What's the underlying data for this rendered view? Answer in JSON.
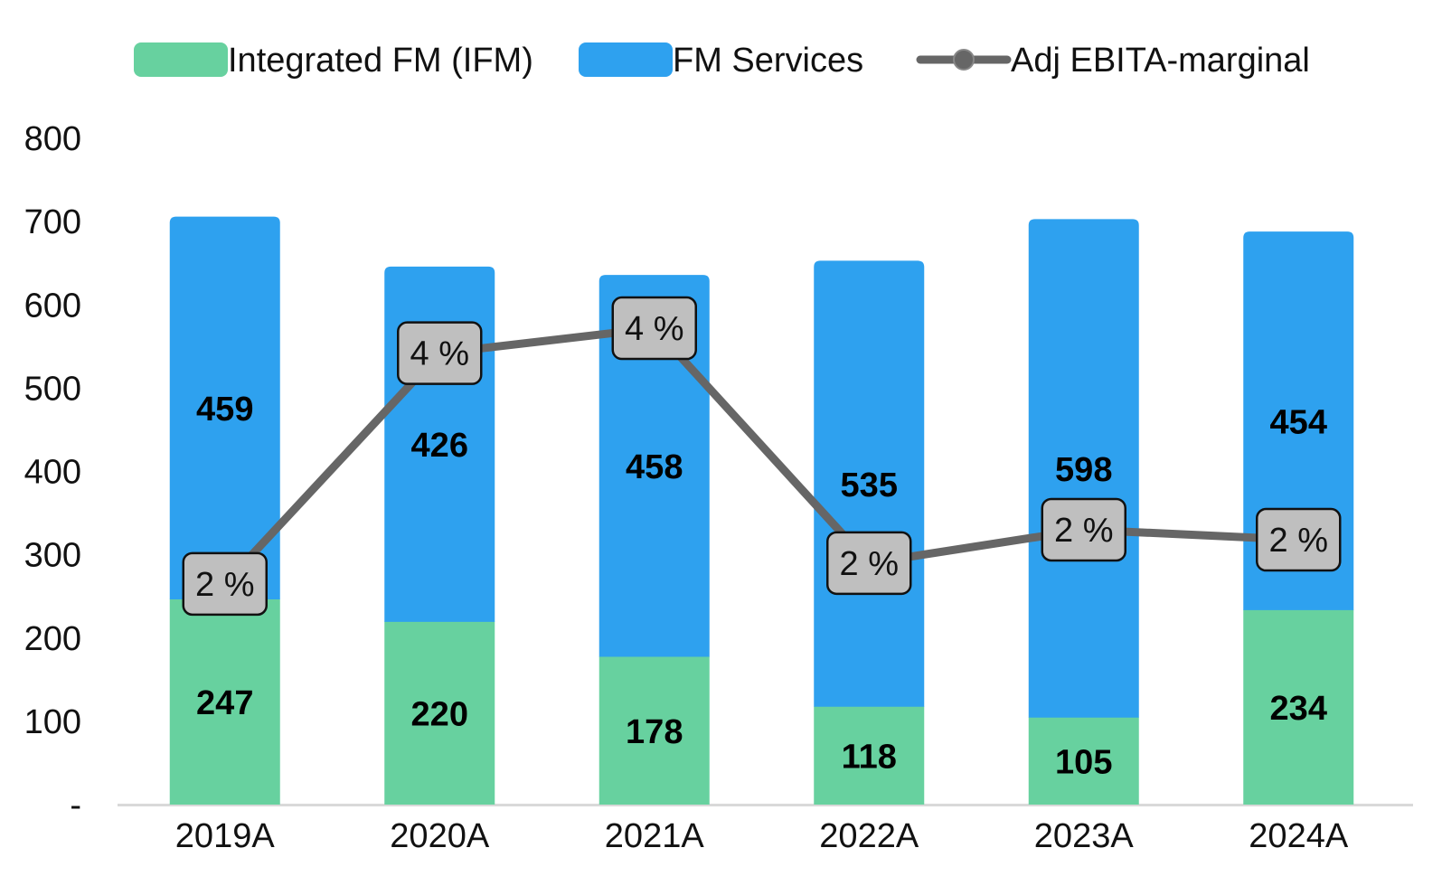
{
  "chart_data": {
    "type": "bar",
    "stacked": true,
    "title": "",
    "xlabel": "",
    "ylabel": "",
    "categories": [
      "2019A",
      "2020A",
      "2021A",
      "2022A",
      "2023A",
      "2024A"
    ],
    "ylim": [
      0,
      800
    ],
    "yticks": [
      0,
      100,
      200,
      300,
      400,
      500,
      600,
      700,
      800
    ],
    "ytick_labels": [
      "-",
      "100",
      "200",
      "300",
      "400",
      "500",
      "600",
      "700",
      "800"
    ],
    "series": [
      {
        "name": "Integrated FM (IFM)",
        "kind": "bar",
        "color": "#67d19f",
        "values": [
          247,
          220,
          178,
          118,
          105,
          234
        ]
      },
      {
        "name": "FM Services",
        "kind": "bar",
        "color": "#2ea1ef",
        "values": [
          459,
          426,
          458,
          535,
          598,
          454
        ]
      }
    ],
    "line_series": {
      "name": "Adj EBITA-marginal",
      "color": "#666666",
      "marker_color": "#bfbfbf",
      "plot_values": [
        265,
        542,
        572,
        290,
        330,
        318
      ],
      "labels": [
        "2 %",
        "4 %",
        "4 %",
        "2 %",
        "2 %",
        "2 %"
      ]
    },
    "legend": [
      {
        "label": "Integrated FM (IFM)",
        "color": "#67d19f",
        "kind": "bar"
      },
      {
        "label": "FM Services",
        "color": "#2ea1ef",
        "kind": "bar"
      },
      {
        "label": "Adj EBITA-marginal",
        "color": "#666666",
        "kind": "line"
      }
    ],
    "legend_position": "top",
    "grid": false,
    "axis_color": "#d9d9d9"
  }
}
